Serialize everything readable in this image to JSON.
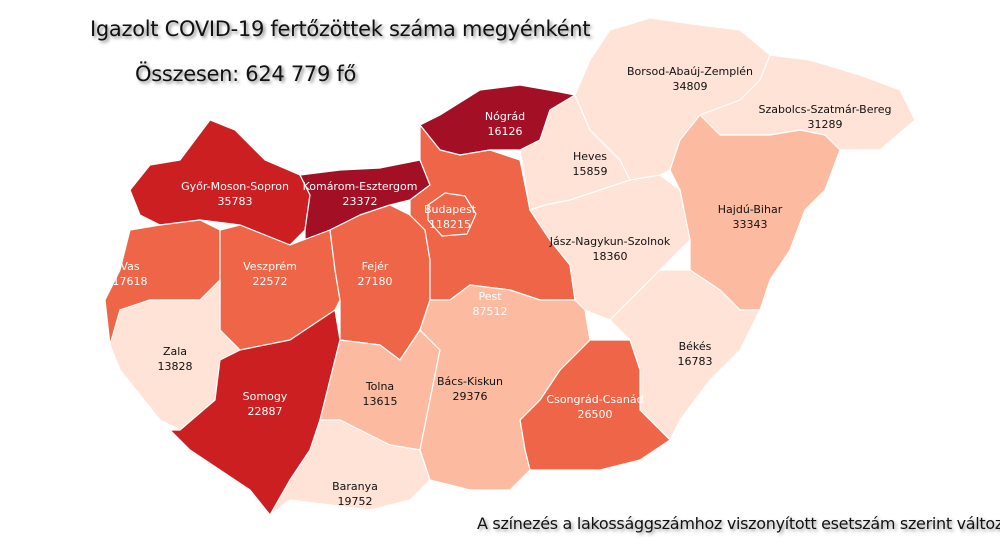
{
  "title": "Igazolt COVID-19 fertőzöttek száma megyénként",
  "total": "Összesen: 624 779 fő",
  "note": "A színezés a lakossággszámhoz viszonyított esetszám szerint változik",
  "colors": {
    "darkest": "#a30f24",
    "dark": "#cc1f22",
    "medium": "#ef6548",
    "light": "#fcbba1",
    "lightest": "#fee3d6"
  },
  "counties": [
    {
      "name": "Győr-Moson-Sopron",
      "cases": "35783",
      "shade": "dark"
    },
    {
      "name": "Komárom-Esztergom",
      "cases": "23372",
      "shade": "darkest"
    },
    {
      "name": "Nógrád",
      "cases": "16126",
      "shade": "darkest"
    },
    {
      "name": "Vas",
      "cases": "17618",
      "shade": "medium"
    },
    {
      "name": "Veszprém",
      "cases": "22572",
      "shade": "medium"
    },
    {
      "name": "Fejér",
      "cases": "27180",
      "shade": "medium"
    },
    {
      "name": "Zala",
      "cases": "13828",
      "shade": "lightest"
    },
    {
      "name": "Somogy",
      "cases": "22887",
      "shade": "dark"
    },
    {
      "name": "Tolna",
      "cases": "13615",
      "shade": "light"
    },
    {
      "name": "Baranya",
      "cases": "19752",
      "shade": "lightest"
    },
    {
      "name": "Pest",
      "cases": "87512",
      "shade": "medium"
    },
    {
      "name": "Budapest",
      "cases": "118215",
      "shade": "medium"
    },
    {
      "name": "Heves",
      "cases": "15859",
      "shade": "lightest"
    },
    {
      "name": "Jász-Nagykun-Szolnok",
      "cases": "18360",
      "shade": "lightest"
    },
    {
      "name": "Borsod-Abaúj-Zemplén",
      "cases": "34809",
      "shade": "lightest"
    },
    {
      "name": "Szabolcs-Szatmár-Bereg",
      "cases": "31289",
      "shade": "lightest"
    },
    {
      "name": "Hajdú-Bihar",
      "cases": "33343",
      "shade": "light"
    },
    {
      "name": "Békés",
      "cases": "16783",
      "shade": "lightest"
    },
    {
      "name": "Csongrád-Csanád",
      "cases": "26500",
      "shade": "medium"
    },
    {
      "name": "Bács-Kiskun",
      "cases": "29376",
      "shade": "light"
    }
  ]
}
